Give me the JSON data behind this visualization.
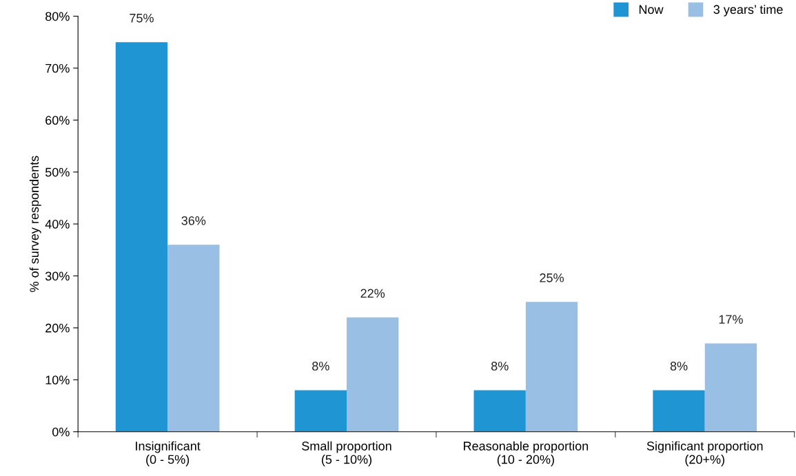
{
  "chart_data": {
    "type": "bar",
    "ylabel": "% of survey respondents",
    "categories": [
      "Insignificant\n(0 - 5%)",
      "Small proportion\n(5 - 10%)",
      "Reasonable proportion\n(10 - 20%)",
      "Significant proportion\n(20+%)"
    ],
    "series": [
      {
        "name": "Now",
        "color": "#1f95d3",
        "values": [
          75,
          8,
          8,
          8
        ],
        "value_labels": [
          "75%",
          "8%",
          "8%",
          "8%"
        ]
      },
      {
        "name": "3 years’ time",
        "color": "#99bfe5",
        "values": [
          36,
          22,
          25,
          17
        ],
        "value_labels": [
          "36%",
          "22%",
          "25%",
          "17%"
        ]
      }
    ],
    "ylim": [
      0,
      80
    ],
    "yticks": [
      {
        "value": 0,
        "label": "0%"
      },
      {
        "value": 10,
        "label": "10%"
      },
      {
        "value": 20,
        "label": "20%"
      },
      {
        "value": 30,
        "label": "30%"
      },
      {
        "value": 40,
        "label": "40%"
      },
      {
        "value": 50,
        "label": "50%"
      },
      {
        "value": 60,
        "label": "60%"
      },
      {
        "value": 70,
        "label": "70%"
      },
      {
        "value": 80,
        "label": "80%"
      }
    ],
    "grid": false,
    "legend": "top right"
  }
}
